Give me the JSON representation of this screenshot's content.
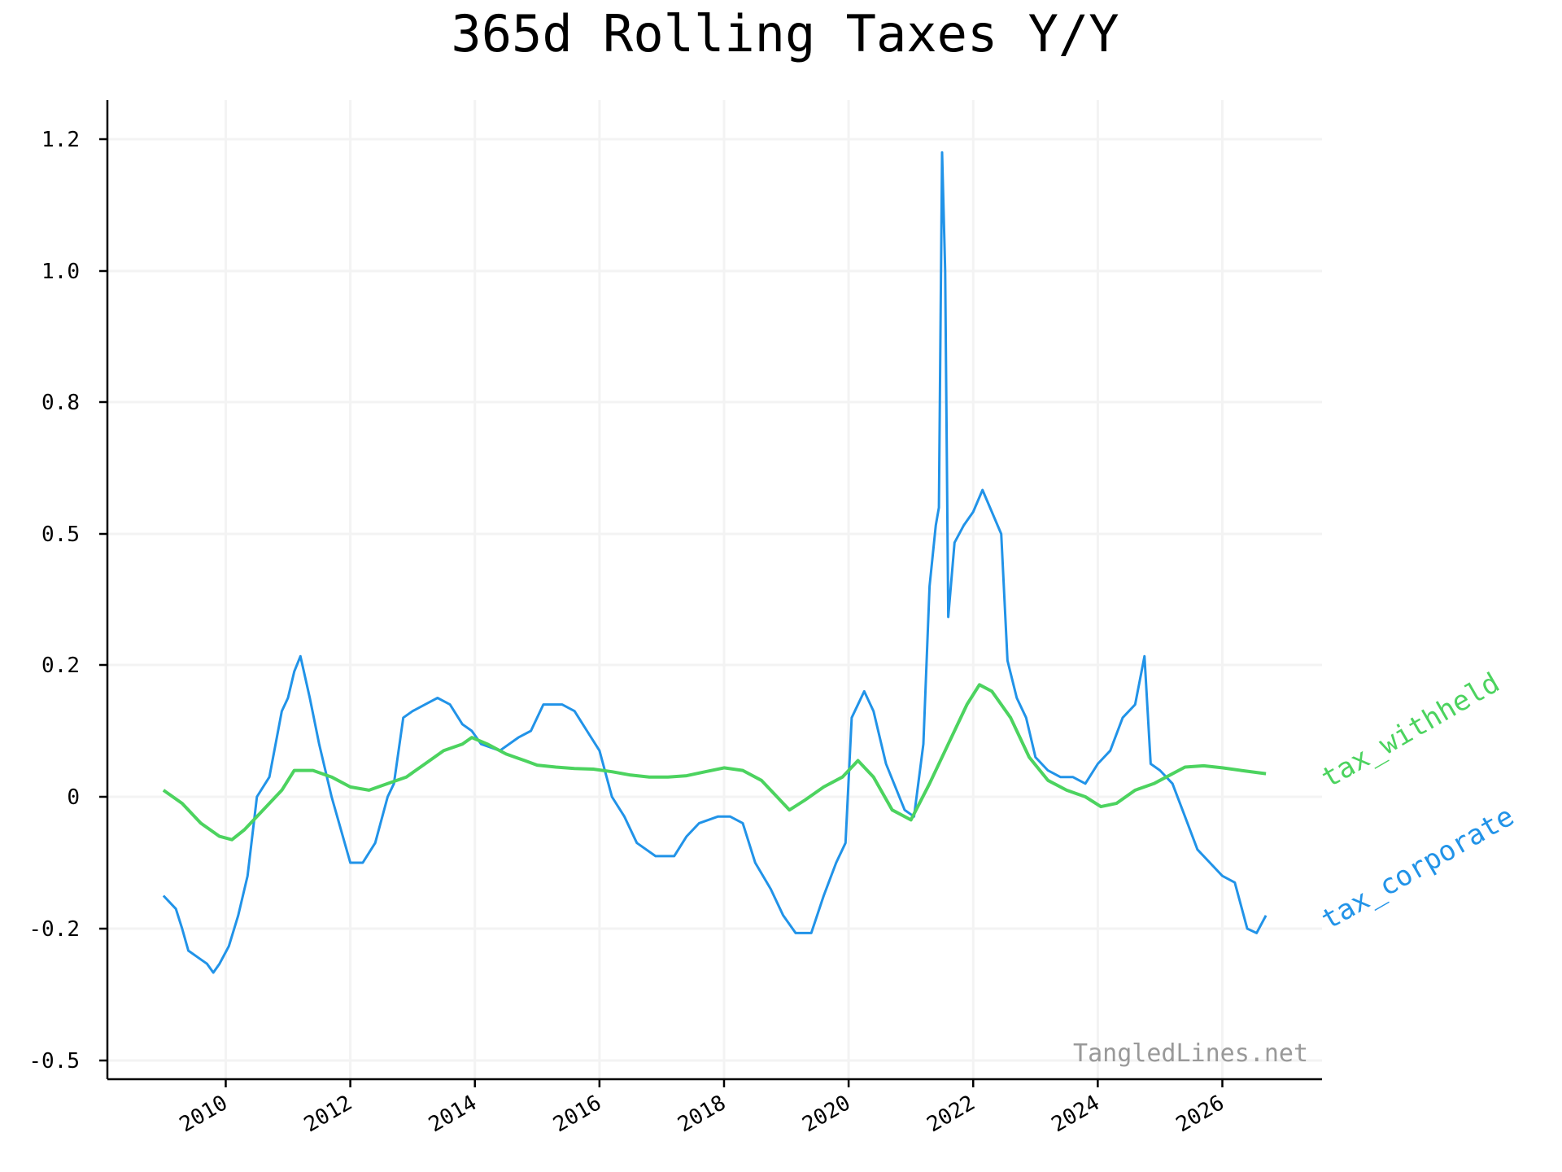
{
  "chart_data": {
    "type": "line",
    "title": "365d Rolling Taxes Y/Y",
    "xlabel": "",
    "ylabel": "",
    "x_ticks": [
      "2010",
      "2012",
      "2014",
      "2016",
      "2018",
      "2020",
      "2022",
      "2024",
      "2026"
    ],
    "y_ticks": [
      {
        "value": -0.5,
        "label": "-0.5"
      },
      {
        "value": -0.2,
        "label": "-0.2"
      },
      {
        "value": 0.0,
        "label": "0"
      },
      {
        "value": 0.2,
        "label": "0.2"
      },
      {
        "value": 0.5,
        "label": "0.5"
      },
      {
        "value": 0.8,
        "label": "0.8"
      },
      {
        "value": 1.0,
        "label": "1.0"
      },
      {
        "value": 1.2,
        "label": "1.2"
      }
    ],
    "xlim": [
      2008.1,
      2027.6
    ],
    "grid": true,
    "legend": "inline labels at right end of each series, rotated",
    "watermark": "TangledLines.net",
    "colors": {
      "tax_withheld": "#4cd35f",
      "tax_corporate": "#2193e8"
    },
    "series": [
      {
        "name": "tax_withheld",
        "x": [
          2009.0,
          2009.3,
          2009.6,
          2009.9,
          2010.1,
          2010.3,
          2010.6,
          2010.9,
          2011.1,
          2011.4,
          2011.7,
          2012.0,
          2012.3,
          2012.6,
          2012.9,
          2013.2,
          2013.5,
          2013.8,
          2013.95,
          2014.2,
          2014.5,
          2014.8,
          2015.0,
          2015.3,
          2015.6,
          2015.9,
          2016.2,
          2016.5,
          2016.8,
          2017.1,
          2017.4,
          2017.7,
          2018.0,
          2018.3,
          2018.6,
          2018.85,
          2019.05,
          2019.3,
          2019.6,
          2019.9,
          2020.15,
          2020.4,
          2020.7,
          2021.0,
          2021.3,
          2021.6,
          2021.9,
          2022.1,
          2022.3,
          2022.6,
          2022.9,
          2023.2,
          2023.5,
          2023.8,
          2024.05,
          2024.3,
          2024.6,
          2024.9,
          2025.1,
          2025.4,
          2025.7,
          2026.0,
          2026.3,
          2026.7
        ],
        "values": [
          0.01,
          -0.01,
          -0.04,
          -0.06,
          -0.065,
          -0.05,
          -0.02,
          0.01,
          0.04,
          0.04,
          0.03,
          0.015,
          0.01,
          0.02,
          0.03,
          0.05,
          0.07,
          0.08,
          0.09,
          0.08,
          0.065,
          0.055,
          0.048,
          0.045,
          0.043,
          0.042,
          0.038,
          0.033,
          0.03,
          0.03,
          0.032,
          0.038,
          0.044,
          0.04,
          0.025,
          0.0,
          -0.02,
          -0.005,
          0.015,
          0.03,
          0.055,
          0.03,
          -0.02,
          -0.035,
          0.02,
          0.08,
          0.14,
          0.17,
          0.16,
          0.12,
          0.06,
          0.025,
          0.01,
          0.0,
          -0.015,
          -0.01,
          0.01,
          0.02,
          0.03,
          0.045,
          0.047,
          0.044,
          0.04,
          0.035
        ]
      },
      {
        "name": "tax_corporate",
        "x": [
          2009.0,
          2009.2,
          2009.3,
          2009.4,
          2009.6,
          2009.7,
          2009.8,
          2009.9,
          2010.05,
          2010.2,
          2010.35,
          2010.5,
          2010.7,
          2010.9,
          2011.0,
          2011.1,
          2011.2,
          2011.35,
          2011.5,
          2011.7,
          2012.0,
          2012.2,
          2012.4,
          2012.6,
          2012.7,
          2012.85,
          2013.0,
          2013.2,
          2013.4,
          2013.6,
          2013.8,
          2013.95,
          2014.1,
          2014.4,
          2014.7,
          2014.9,
          2015.1,
          2015.4,
          2015.6,
          2015.8,
          2016.0,
          2016.2,
          2016.4,
          2016.6,
          2016.9,
          2017.2,
          2017.4,
          2017.6,
          2017.9,
          2018.1,
          2018.3,
          2018.5,
          2018.75,
          2018.95,
          2019.15,
          2019.4,
          2019.6,
          2019.8,
          2019.95,
          2020.05,
          2020.25,
          2020.4,
          2020.6,
          2020.9,
          2021.05,
          2021.2,
          2021.3,
          2021.4,
          2021.45,
          2021.5,
          2021.55,
          2021.6,
          2021.7,
          2021.85,
          2022.0,
          2022.15,
          2022.3,
          2022.45,
          2022.55,
          2022.7,
          2022.85,
          2023.0,
          2023.2,
          2023.4,
          2023.6,
          2023.8,
          2024.0,
          2024.2,
          2024.4,
          2024.6,
          2024.75,
          2024.85,
          2025.0,
          2025.2,
          2025.4,
          2025.6,
          2025.8,
          2026.0,
          2026.2,
          2026.4,
          2026.55,
          2026.7
        ],
        "values": [
          -0.15,
          -0.17,
          -0.2,
          -0.25,
          -0.27,
          -0.28,
          -0.3,
          -0.28,
          -0.24,
          -0.18,
          -0.12,
          0.0,
          0.03,
          0.13,
          0.15,
          0.19,
          0.22,
          0.15,
          0.08,
          0.0,
          -0.1,
          -0.1,
          -0.07,
          0.0,
          0.02,
          0.12,
          0.13,
          0.14,
          0.15,
          0.14,
          0.11,
          0.1,
          0.08,
          0.07,
          0.09,
          0.1,
          0.14,
          0.14,
          0.13,
          0.1,
          0.07,
          0.0,
          -0.03,
          -0.07,
          -0.09,
          -0.09,
          -0.06,
          -0.04,
          -0.03,
          -0.03,
          -0.04,
          -0.1,
          -0.14,
          -0.18,
          -0.21,
          -0.21,
          -0.15,
          -0.1,
          -0.07,
          0.12,
          0.16,
          0.13,
          0.05,
          -0.02,
          -0.03,
          0.08,
          0.38,
          0.52,
          0.56,
          1.18,
          1.0,
          0.31,
          0.48,
          0.52,
          0.55,
          0.6,
          0.55,
          0.5,
          0.21,
          0.15,
          0.12,
          0.06,
          0.04,
          0.03,
          0.03,
          0.02,
          0.05,
          0.07,
          0.12,
          0.14,
          0.22,
          0.05,
          0.04,
          0.02,
          -0.03,
          -0.08,
          -0.1,
          -0.12,
          -0.13,
          -0.2,
          -0.21,
          -0.18
        ]
      }
    ]
  }
}
